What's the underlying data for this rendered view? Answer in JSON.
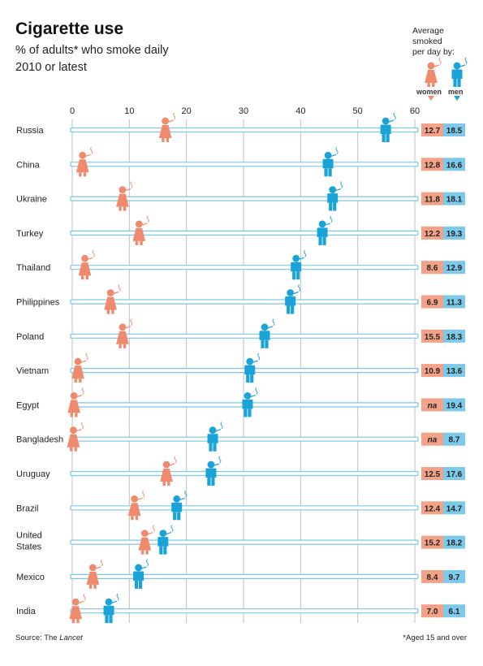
{
  "title": "Cigarette use",
  "subtitle": [
    "% of adults* who smoke daily",
    "2010 or latest"
  ],
  "average_header": [
    "Average",
    "smoked",
    "per day by:"
  ],
  "legend": {
    "women": "women",
    "men": "men"
  },
  "source": {
    "prefix": "Source: The ",
    "name": "Lancet"
  },
  "footnote": "*Aged 15 and over",
  "colors": {
    "women": "#f08a6c",
    "men": "#1aa3d6",
    "women_box": "#f3a287",
    "men_box": "#7cc9ea",
    "bar_border": "#7ec6e6",
    "grid": "#bfbfbf"
  },
  "chart_data": {
    "type": "dot-plot",
    "x_axis": {
      "ticks": [
        0,
        10,
        20,
        30,
        40,
        50,
        60
      ],
      "range": [
        0,
        60
      ],
      "position": "top"
    },
    "grid": true,
    "categories": [
      "Russia",
      "China",
      "Ukraine",
      "Turkey",
      "Thailand",
      "Philippines",
      "Poland",
      "Vietnam",
      "Egypt",
      "Bangladesh",
      "Uruguay",
      "Brazil",
      "United States",
      "Mexico",
      "India"
    ],
    "series": [
      {
        "name": "women",
        "values": [
          16.3,
          1.8,
          8.8,
          11.7,
          2.2,
          6.7,
          8.8,
          1.0,
          0.3,
          0.2,
          16.5,
          10.9,
          12.7,
          3.6,
          0.6
        ]
      },
      {
        "name": "men",
        "values": [
          54.9,
          44.8,
          45.6,
          43.8,
          39.2,
          38.2,
          33.7,
          31.1,
          30.7,
          24.6,
          24.3,
          18.3,
          15.9,
          11.6,
          6.4
        ]
      }
    ],
    "avg_smoked_per_day": {
      "women": [
        "12.7",
        "12.8",
        "11.8",
        "12.2",
        "8.6",
        "6.9",
        "15.5",
        "10.9",
        "na",
        "na",
        "12.5",
        "12.4",
        "15.2",
        "8.4",
        "7.0"
      ],
      "men": [
        "18.5",
        "16.6",
        "18.1",
        "19.3",
        "12.9",
        "11.3",
        "18.3",
        "13.6",
        "19.4",
        "8.7",
        "17.6",
        "14.7",
        "18.2",
        "9.7",
        "6.1"
      ]
    }
  }
}
